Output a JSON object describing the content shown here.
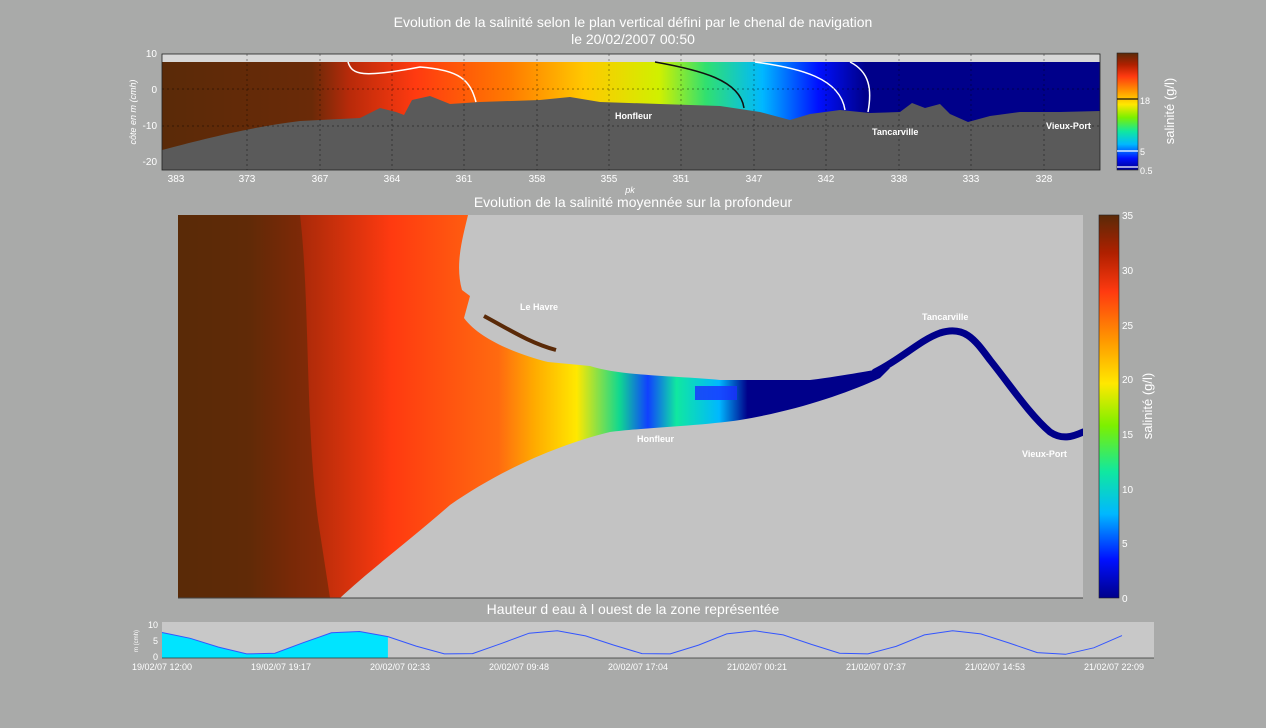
{
  "titles": {
    "vertical_line1": "Evolution de la salinité selon le plan vertical défini par le chenal de navigation",
    "vertical_line2": "le 20/02/2007 00:50",
    "map": "Evolution de la salinité moyennée sur la profondeur",
    "tide": "Hauteur d eau à l ouest de la zone représentée"
  },
  "colors": {
    "background": "#a9aaa9",
    "bed": "#5a5a5a",
    "land_map": "#c3c3c3",
    "tide_line": "#3355ff",
    "tide_fill": "#00e4ff",
    "colormap": [
      "#00008a",
      "#0010ff",
      "#00b8ff",
      "#10e8a0",
      "#7cf000",
      "#ffe800",
      "#ff9a00",
      "#ff3a10",
      "#b02000",
      "#5a2a08"
    ]
  },
  "chart_data": [
    {
      "type": "heatmap",
      "id": "vertical-section",
      "title": "Evolution de la salinité selon le plan vertical défini par le chenal de navigation",
      "subtitle": "le 20/02/2007 00:50",
      "xlabel": "pk",
      "ylabel": "côte en m (cmh)",
      "x_ticks": [
        "383",
        "373",
        "367",
        "364",
        "361",
        "358",
        "355",
        "351",
        "347",
        "342",
        "338",
        "333",
        "328"
      ],
      "y_ticks": [
        "10",
        "0",
        "-10",
        "-20"
      ],
      "ylim": [
        -22,
        10
      ],
      "place_labels": [
        "Honfleur",
        "Tancarville",
        "Vieux-Port"
      ],
      "salinity_along_channel": [
        {
          "pk": "383",
          "salinity": 35
        },
        {
          "pk": "367",
          "salinity": 34
        },
        {
          "pk": "364",
          "salinity": 28
        },
        {
          "pk": "361",
          "salinity": 24
        },
        {
          "pk": "355",
          "salinity": 18
        },
        {
          "pk": "351",
          "salinity": 12
        },
        {
          "pk": "347",
          "salinity": 6
        },
        {
          "pk": "342",
          "salinity": 1
        },
        {
          "pk": "338",
          "salinity": 0.5
        },
        {
          "pk": "328",
          "salinity": 0.5
        }
      ],
      "colorbar": {
        "label": "salinité (g/l)",
        "ticks": [
          "18",
          "5",
          "0.5"
        ]
      }
    },
    {
      "type": "heatmap",
      "id": "depth-averaged-map",
      "title": "Evolution de la salinité moyennée sur la profondeur",
      "place_labels": [
        "Le Havre",
        "Tancarville",
        "Honfleur",
        "Vieux-Port"
      ],
      "colorbar": {
        "label": "salinité (g/l)",
        "ticks": [
          "35",
          "30",
          "25",
          "20",
          "15",
          "10",
          "5",
          "0"
        ],
        "range": [
          0,
          35
        ]
      }
    },
    {
      "type": "area",
      "id": "tide",
      "title": "Hauteur d eau à l ouest de la zone représentée",
      "ylabel": "m (cmh)",
      "y_ticks": [
        "10",
        "5",
        "0"
      ],
      "ylim": [
        0,
        10
      ],
      "x_ticks": [
        "19/02/07 12:00",
        "19/02/07 19:17",
        "20/02/07 02:33",
        "20/02/07 09:48",
        "20/02/07 17:04",
        "21/02/07 00:21",
        "21/02/07 07:37",
        "21/02/07 14:53",
        "21/02/07 22:09"
      ],
      "elapsed_fraction": 0.225,
      "values": [
        7.5,
        5.8,
        3.2,
        1.2,
        1.4,
        4.5,
        7.4,
        7.8,
        6.3,
        3.5,
        1.2,
        1.3,
        4.2,
        7.3,
        8.0,
        6.5,
        3.8,
        1.3,
        1.2,
        3.8,
        7.1,
        8.0,
        6.8,
        4.0,
        1.4,
        1.2,
        3.4,
        6.8,
        8.0,
        7.1,
        4.4,
        1.6,
        1.1,
        3.0,
        6.6
      ]
    }
  ]
}
